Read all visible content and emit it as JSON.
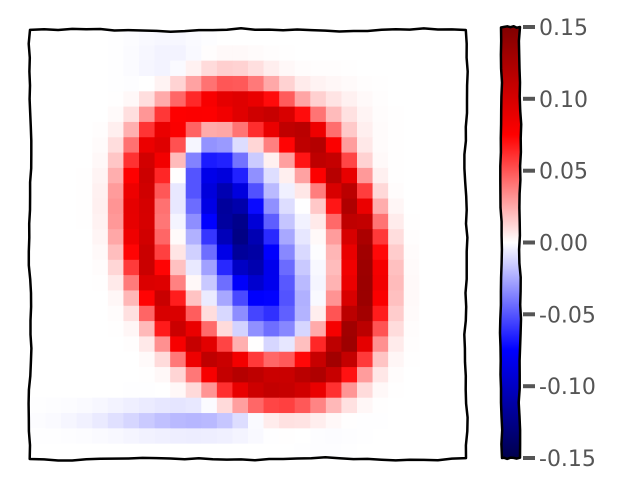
{
  "chart_data": {
    "type": "heatmap",
    "title": "",
    "xlabel": "",
    "ylabel": "",
    "grid": false,
    "rows": 28,
    "cols": 28,
    "colormap": "seismic",
    "colorbar": {
      "min": -0.15,
      "max": 0.15,
      "ticks": [
        {
          "value": 0.15,
          "label": "0.15"
        },
        {
          "value": 0.1,
          "label": "0.10"
        },
        {
          "value": 0.05,
          "label": "0.05"
        },
        {
          "value": 0.0,
          "label": "0.00"
        },
        {
          "value": -0.05,
          "label": "-0.05"
        },
        {
          "value": -0.1,
          "label": "-0.10"
        },
        {
          "value": -0.15,
          "label": "-0.15"
        }
      ]
    },
    "components": {
      "ring": {
        "center_col": 13.8,
        "center_row": 13.5,
        "radius_col": 6.8,
        "radius_row": 9.3,
        "tilt": 0.38,
        "width": 1.15,
        "peak": 0.107
      },
      "ring_lower_right_boost": {
        "peak": 0.028
      },
      "inner_negative": {
        "center_col": 12.9,
        "center_row": 12.6,
        "spread_col": 1.55,
        "spread_row": 4.8,
        "tilt": 0.38,
        "peak": -0.127
      },
      "bottom_negative": {
        "center_col": 10.3,
        "center_row": 24.9,
        "spread_col": 4.0,
        "spread_row": 0.65,
        "peak": -0.022
      },
      "upper_right_positive": {
        "center_col": 18.2,
        "center_row": 6.2,
        "spread_col": 1.6,
        "spread_row": 1.6,
        "peak": 0.02
      }
    }
  }
}
